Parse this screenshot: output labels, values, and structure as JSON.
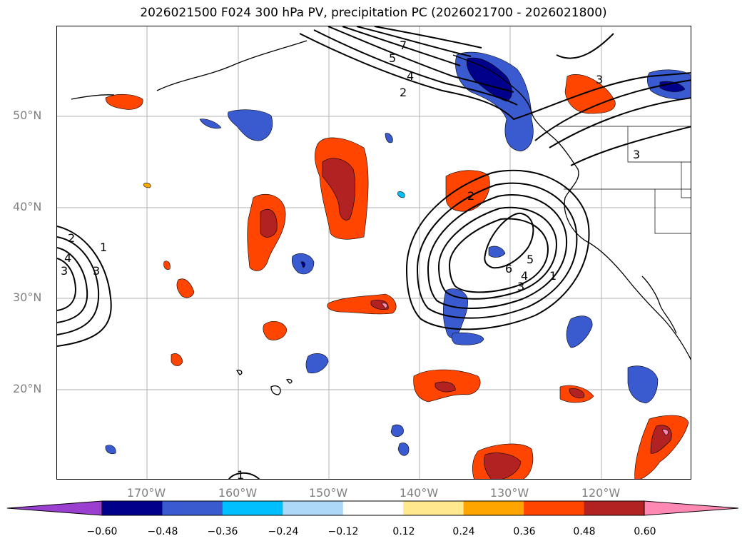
{
  "title": "2026021500 F024 300 hPa PV, precipitation PC (2026021700 - 2026021800)",
  "map": {
    "lat_labels": [
      "50°N",
      "40°N",
      "30°N",
      "20°N"
    ],
    "lon_labels": [
      "170°W",
      "160°W",
      "150°W",
      "140°W",
      "130°W",
      "120°W"
    ],
    "contour_labels": [
      "7",
      "5",
      "4",
      "2",
      "3",
      "3",
      "2",
      "1",
      "2",
      "4",
      "3",
      "3",
      "6",
      "5",
      "4",
      "3",
      "1",
      "1"
    ]
  },
  "colorbar": {
    "ticks": [
      "−0.60",
      "−0.48",
      "−0.36",
      "−0.24",
      "−0.12",
      "0.12",
      "0.24",
      "0.36",
      "0.48",
      "0.60"
    ],
    "colors": [
      "#9a3fd0",
      "#00008b",
      "#3a5bd0",
      "#00bfff",
      "#add8f6",
      "#ffffff",
      "#ffe98c",
      "#ffa500",
      "#ff4500",
      "#b22222",
      "#ff89b2"
    ]
  }
}
